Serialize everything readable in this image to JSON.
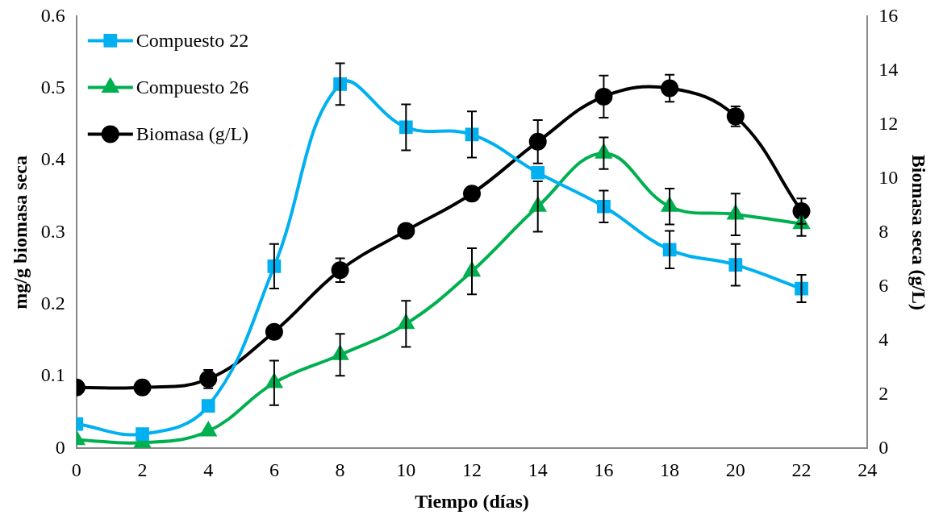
{
  "chart_data": {
    "type": "line",
    "xlabel": "Tiempo (días)",
    "ylabel": "mg/g biomasa seca",
    "y2label": "Biomasa seca (g/L)",
    "x": [
      0,
      2,
      4,
      6,
      8,
      10,
      12,
      14,
      16,
      18,
      20,
      22
    ],
    "xlim": [
      0,
      24
    ],
    "xticks": [
      0,
      2,
      4,
      6,
      8,
      10,
      12,
      14,
      16,
      18,
      20,
      22,
      24
    ],
    "ylim": [
      0,
      0.6
    ],
    "yticks": [
      0,
      0.1,
      0.2,
      0.3,
      0.4,
      0.5,
      0.6
    ],
    "y2lim": [
      0,
      16
    ],
    "y2ticks": [
      0,
      2,
      4,
      6,
      8,
      10,
      12,
      14,
      16
    ],
    "grid": false,
    "legend": "top left",
    "series": [
      {
        "name": "Compuesto 22",
        "color": "#00b0f0",
        "marker": "square",
        "values": [
          0.034,
          0.02,
          0.059,
          0.253,
          0.506,
          0.446,
          0.436,
          0.383,
          0.336,
          0.276,
          0.255,
          0.222
        ],
        "errors": [
          null,
          null,
          null,
          0.031,
          0.029,
          0.032,
          0.032,
          null,
          0.022,
          0.026,
          0.029,
          0.019
        ]
      },
      {
        "name": "Compuesto 26",
        "color": "#00b050",
        "marker": "triangle",
        "values": [
          0.012,
          0.008,
          0.024,
          0.091,
          0.13,
          0.173,
          0.246,
          0.336,
          0.41,
          0.336,
          0.325,
          0.312
        ],
        "errors": [
          null,
          null,
          null,
          0.031,
          0.029,
          0.032,
          0.032,
          0.035,
          0.022,
          0.025,
          0.029,
          0.017
        ]
      },
      {
        "name": "Biomasa (g/L)",
        "color": "#000000",
        "marker": "circle",
        "axis": "y2",
        "values": [
          2.26,
          2.26,
          2.57,
          4.32,
          6.6,
          8.06,
          9.44,
          11.36,
          13.03,
          13.34,
          12.3,
          8.79
        ],
        "errors": [
          null,
          null,
          0.34,
          null,
          0.44,
          null,
          null,
          0.8,
          0.78,
          0.5,
          0.37,
          0.47
        ]
      }
    ]
  }
}
